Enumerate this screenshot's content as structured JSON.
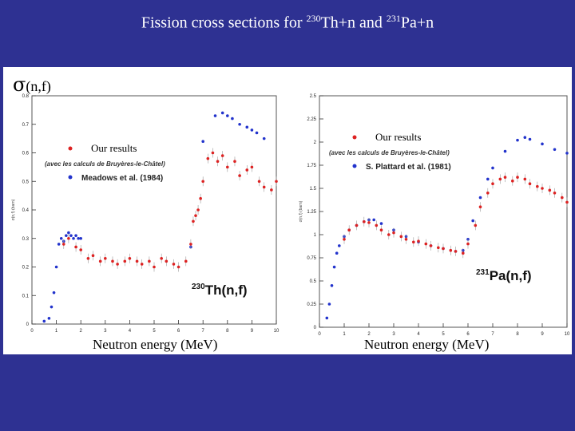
{
  "title": {
    "prefix": "Fission cross sections for ",
    "sup1": "230",
    "mid": "Th+n and ",
    "sup2": "231",
    "suffix": "Pa+n"
  },
  "ylabel_main": {
    "symbol": "σ",
    "text": "(n,f)"
  },
  "colors": {
    "background": "#2e3192",
    "our_results": "#dd2222",
    "reference": "#2233cc"
  },
  "chart_data": [
    {
      "type": "scatter",
      "reaction": "230Th(n,f)",
      "reaction_label": {
        "sup": "230",
        "text": "Th(n,f)"
      },
      "xlabel": "Neutron energy (MeV)",
      "ylabel": "σ(n,f) (barn)",
      "xlim": [
        0,
        10
      ],
      "ylim": [
        0,
        0.8
      ],
      "xticks": [
        "0",
        "1",
        "2",
        "3",
        "4",
        "5",
        "6",
        "7",
        "8",
        "9",
        "10"
      ],
      "yticks": [
        "0",
        "0.1",
        "0.2",
        "0.3",
        "0.4",
        "0.5",
        "0.6",
        "0.7",
        "0.8"
      ],
      "legend": [
        {
          "label": "Our results",
          "color": "#dd2222"
        },
        {
          "label": "(avec les calculs de Bruyères-le-Châtel)",
          "color": "#333333"
        },
        {
          "label": "Meadows et al. (1984)",
          "color": "#2233cc"
        }
      ],
      "series": [
        {
          "name": "Meadows et al. (1984)",
          "color": "#2233cc",
          "x": [
            0.5,
            0.7,
            0.8,
            0.9,
            1.0,
            1.1,
            1.2,
            1.3,
            1.4,
            1.5,
            1.6,
            1.7,
            1.8,
            1.9,
            2.0,
            6.5,
            7.0,
            7.5,
            7.8,
            8.0,
            8.2,
            8.5,
            8.8,
            9.0,
            9.2,
            9.5
          ],
          "y": [
            0.01,
            0.02,
            0.06,
            0.11,
            0.2,
            0.28,
            0.3,
            0.29,
            0.31,
            0.32,
            0.31,
            0.3,
            0.31,
            0.3,
            0.3,
            0.27,
            0.64,
            0.73,
            0.74,
            0.73,
            0.72,
            0.7,
            0.69,
            0.68,
            0.67,
            0.65
          ]
        },
        {
          "name": "Our results",
          "color": "#dd2222",
          "x": [
            1.3,
            1.5,
            1.8,
            2.0,
            2.3,
            2.5,
            2.8,
            3.0,
            3.3,
            3.5,
            3.8,
            4.0,
            4.3,
            4.5,
            4.8,
            5.0,
            5.3,
            5.5,
            5.8,
            6.0,
            6.3,
            6.5,
            6.6,
            6.7,
            6.8,
            6.9,
            7.0,
            7.2,
            7.4,
            7.6,
            7.8,
            8.0,
            8.3,
            8.5,
            8.8,
            9.0,
            9.3,
            9.5,
            9.8,
            10.0
          ],
          "y": [
            0.28,
            0.3,
            0.27,
            0.26,
            0.23,
            0.24,
            0.22,
            0.23,
            0.22,
            0.21,
            0.22,
            0.23,
            0.22,
            0.21,
            0.22,
            0.2,
            0.23,
            0.22,
            0.21,
            0.2,
            0.22,
            0.28,
            0.36,
            0.38,
            0.4,
            0.44,
            0.5,
            0.58,
            0.6,
            0.57,
            0.59,
            0.55,
            0.57,
            0.52,
            0.54,
            0.55,
            0.5,
            0.48,
            0.47,
            0.5
          ]
        }
      ]
    },
    {
      "type": "scatter",
      "reaction": "231Pa(n,f)",
      "reaction_label": {
        "sup": "231",
        "text": "Pa(n,f)"
      },
      "xlabel": "Neutron energy (MeV)",
      "ylabel": "σ(n,f) (barn)",
      "xlim": [
        0,
        10
      ],
      "ylim": [
        0,
        2.5
      ],
      "xticks": [
        "0",
        "1",
        "2",
        "3",
        "4",
        "5",
        "6",
        "7",
        "8",
        "9",
        "10"
      ],
      "yticks": [
        "0",
        "0.25",
        "0.5",
        "0.75",
        "1",
        "1.25",
        "1.5",
        "1.75",
        "2",
        "2.25",
        "2.5"
      ],
      "legend": [
        {
          "label": "Our results",
          "color": "#dd2222"
        },
        {
          "label": "(avec les calculs de Bruyères-le-Châtel)",
          "color": "#333333"
        },
        {
          "label": "S. Plattard et al. (1981)",
          "color": "#2233cc"
        }
      ],
      "series": [
        {
          "name": "S. Plattard et al. (1981)",
          "color": "#2233cc",
          "x": [
            0.3,
            0.4,
            0.5,
            0.6,
            0.7,
            0.8,
            1.0,
            1.2,
            1.5,
            1.8,
            2.0,
            2.2,
            2.5,
            3.0,
            3.5,
            4.0,
            4.5,
            5.0,
            5.5,
            5.8,
            6.0,
            6.2,
            6.5,
            6.8,
            7.0,
            7.5,
            8.0,
            8.3,
            8.5,
            9.0,
            9.5,
            10.0
          ],
          "y": [
            0.1,
            0.25,
            0.45,
            0.65,
            0.8,
            0.88,
            0.98,
            1.05,
            1.1,
            1.14,
            1.16,
            1.16,
            1.12,
            1.05,
            0.98,
            0.92,
            0.88,
            0.85,
            0.82,
            0.83,
            0.95,
            1.15,
            1.4,
            1.6,
            1.72,
            1.9,
            2.02,
            2.05,
            2.03,
            1.98,
            1.92,
            1.88
          ]
        },
        {
          "name": "Our results",
          "color": "#dd2222",
          "x": [
            1.0,
            1.2,
            1.5,
            1.8,
            2.0,
            2.3,
            2.5,
            2.8,
            3.0,
            3.3,
            3.5,
            3.8,
            4.0,
            4.3,
            4.5,
            4.8,
            5.0,
            5.3,
            5.5,
            5.8,
            6.0,
            6.3,
            6.5,
            6.8,
            7.0,
            7.3,
            7.5,
            7.8,
            8.0,
            8.3,
            8.5,
            8.8,
            9.0,
            9.3,
            9.5,
            9.8,
            10.0
          ],
          "y": [
            0.95,
            1.05,
            1.1,
            1.14,
            1.13,
            1.1,
            1.05,
            1.0,
            1.02,
            0.98,
            0.95,
            0.92,
            0.93,
            0.9,
            0.88,
            0.86,
            0.85,
            0.83,
            0.82,
            0.8,
            0.9,
            1.1,
            1.3,
            1.45,
            1.55,
            1.6,
            1.62,
            1.58,
            1.62,
            1.6,
            1.55,
            1.52,
            1.5,
            1.48,
            1.45,
            1.4,
            1.35
          ]
        }
      ]
    }
  ]
}
